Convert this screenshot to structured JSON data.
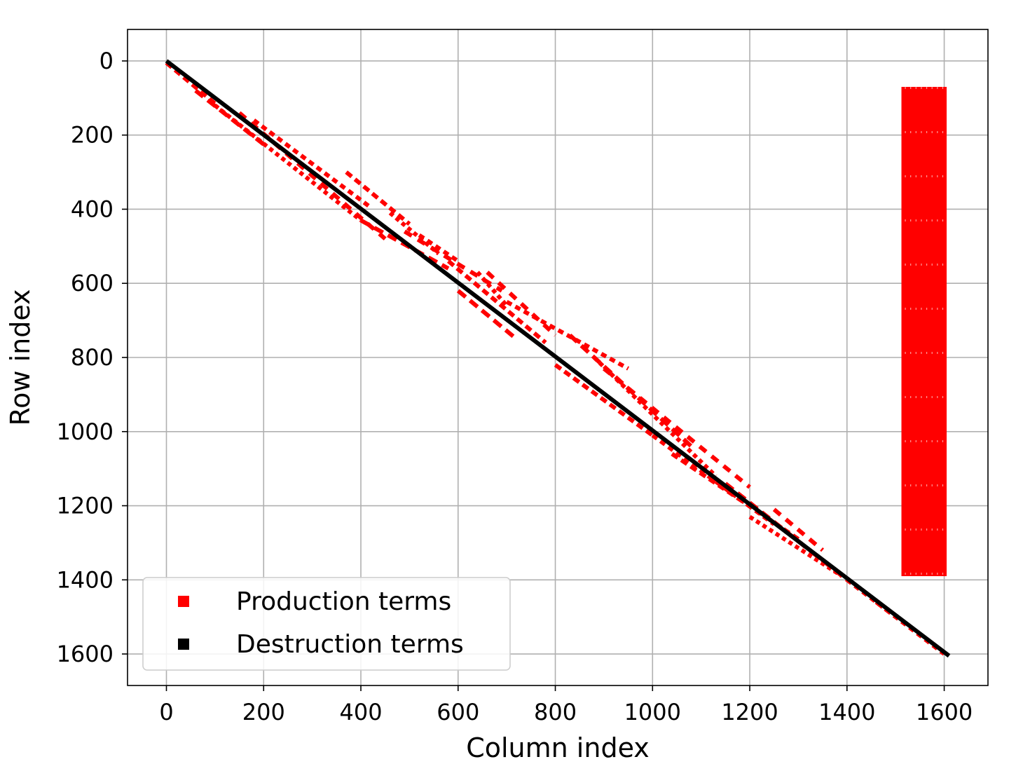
{
  "chart_data": {
    "type": "scatter",
    "title": "",
    "xlabel": "Column index",
    "ylabel": "Row index",
    "xlim": [
      -80,
      1690
    ],
    "ylim": [
      1685,
      -85
    ],
    "y_inverted": true,
    "xticks": [
      0,
      200,
      400,
      600,
      800,
      1000,
      1200,
      1400,
      1600
    ],
    "yticks": [
      0,
      200,
      400,
      600,
      800,
      1000,
      1200,
      1400,
      1600
    ],
    "grid": true,
    "legend_position": "lower-left",
    "colors": {
      "production": "#ff0000",
      "destruction": "#000000",
      "grid": "#b0b0b0"
    },
    "series": [
      {
        "name": "Production terms",
        "color": "#ff0000",
        "segments": [
          {
            "x": [
              0,
              100
            ],
            "y": [
              5,
              115
            ]
          },
          {
            "x": [
              60,
              200
            ],
            "y": [
              80,
              225
            ]
          },
          {
            "x": [
              100,
              400
            ],
            "y": [
              120,
              430
            ]
          },
          {
            "x": [
              150,
              450
            ],
            "y": [
              140,
              480
            ]
          },
          {
            "x": [
              180,
              420
            ],
            "y": [
              160,
              395
            ]
          },
          {
            "x": [
              370,
              500
            ],
            "y": [
              300,
              440
            ]
          },
          {
            "x": [
              400,
              580
            ],
            "y": [
              430,
              560
            ]
          },
          {
            "x": [
              460,
              560
            ],
            "y": [
              410,
              520
            ]
          },
          {
            "x": [
              490,
              690
            ],
            "y": [
              460,
              620
            ]
          },
          {
            "x": [
              520,
              600
            ],
            "y": [
              470,
              540
            ]
          },
          {
            "x": [
              580,
              780
            ],
            "y": [
              540,
              760
            ]
          },
          {
            "x": [
              600,
              720
            ],
            "y": [
              620,
              750
            ]
          },
          {
            "x": [
              640,
              700
            ],
            "y": [
              570,
              660
            ]
          },
          {
            "x": [
              660,
              800
            ],
            "y": [
              570,
              740
            ]
          },
          {
            "x": [
              700,
              950
            ],
            "y": [
              650,
              830
            ]
          },
          {
            "x": [
              800,
              1000
            ],
            "y": [
              820,
              1010
            ]
          },
          {
            "x": [
              830,
              1080
            ],
            "y": [
              740,
              1040
            ]
          },
          {
            "x": [
              880,
              1130
            ],
            "y": [
              800,
              1120
            ]
          },
          {
            "x": [
              900,
              1200
            ],
            "y": [
              830,
              1150
            ]
          },
          {
            "x": [
              1000,
              1250
            ],
            "y": [
              1010,
              1250
            ]
          },
          {
            "x": [
              1040,
              1300
            ],
            "y": [
              1060,
              1290
            ]
          },
          {
            "x": [
              1150,
              1400
            ],
            "y": [
              1140,
              1400
            ]
          },
          {
            "x": [
              1200,
              1390
            ],
            "y": [
              1230,
              1390
            ]
          },
          {
            "x": [
              1250,
              1350
            ],
            "y": [
              1210,
              1320
            ]
          },
          {
            "x": [
              1400,
              1600
            ],
            "y": [
              1400,
              1600
            ]
          },
          {
            "x": [
              1460,
              1500
            ],
            "y": [
              1460,
              1500
            ]
          }
        ],
        "block": {
          "x_start": 1512,
          "x_end": 1605,
          "y_start": 70,
          "y_end": 1390
        }
      },
      {
        "name": "Destruction terms",
        "color": "#000000",
        "x": [
          0,
          1610
        ],
        "y": [
          0,
          1605
        ]
      }
    ]
  }
}
